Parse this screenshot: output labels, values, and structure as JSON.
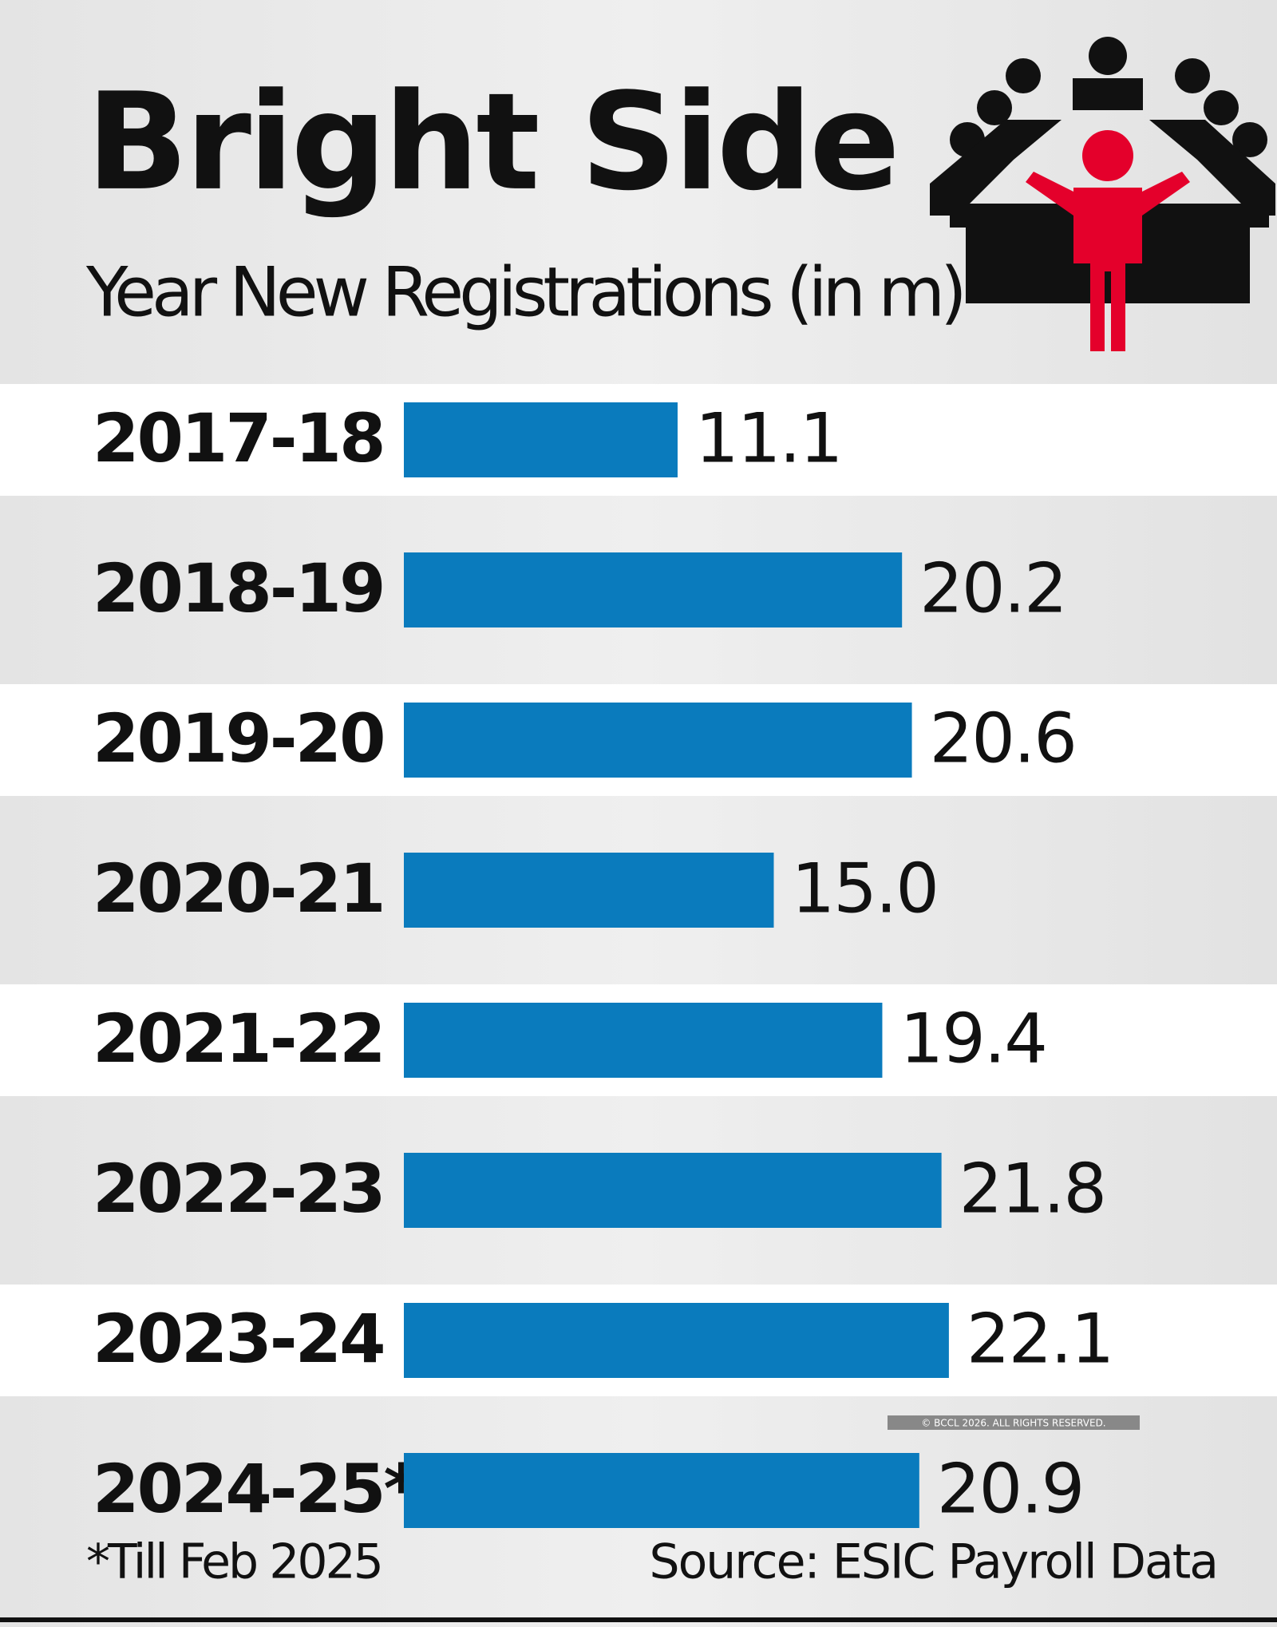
{
  "chart_data": {
    "type": "bar",
    "orientation": "horizontal",
    "title": "Bright Side",
    "subtitle": "Year New Registrations (in m)",
    "categories": [
      "2017-18",
      "2018-19",
      "2019-20",
      "2020-21",
      "2021-22",
      "2022-23",
      "2023-24",
      "2024-25*"
    ],
    "values": [
      11.1,
      20.2,
      20.6,
      15.0,
      19.4,
      21.8,
      22.1,
      20.9
    ],
    "value_labels": [
      "11.1",
      "20.2",
      "20.6",
      "15.0",
      "19.4",
      "21.8",
      "22.1",
      "20.9"
    ],
    "color": "#0a7bbd",
    "note": "*Till Feb 2025",
    "source": "Source: ESIC Payroll Data",
    "copyright": "© BCCL 2026. ALL RIGHTS RESERVED."
  }
}
